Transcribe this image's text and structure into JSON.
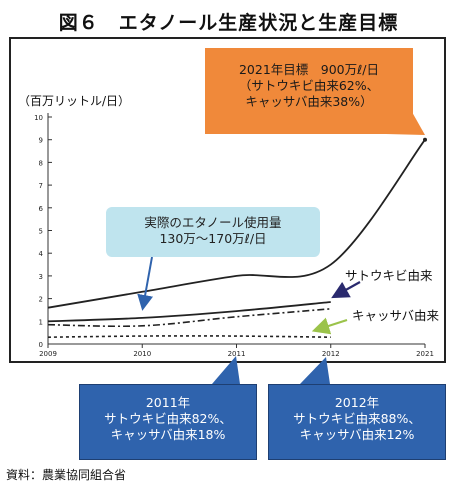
{
  "title": "図６　エタノール生産状況と生産目標",
  "source": "資料：農業協同組合省",
  "colors": {
    "target_box": "#f0893a",
    "actual_box": "#bfe4ee",
    "year_box": "#2f63ad",
    "navy_arrow": "#2a2a6e",
    "green_arrow": "#9bc34a",
    "blue_arrow": "#2f63ad"
  },
  "callouts": {
    "target": {
      "line1": "2021年目標　900万ℓ/日",
      "line2": "（サトウキビ由来62%、",
      "line3": "キャッサバ由来38%）"
    },
    "actual": {
      "line1": "実際のエタノール使用量",
      "line2": "130万～170万ℓ/日"
    },
    "y2011": {
      "line1": "2011年",
      "line2": "サトウキビ由来82%、",
      "line3": "キャッサバ由来18%"
    },
    "y2012": {
      "line1": "2012年",
      "line2": "サトウキビ由来88%、",
      "line3": "キャッサバ由来12%"
    }
  },
  "chart_data": {
    "type": "line",
    "ylabel": "（百万リットル/日）",
    "ylim": [
      0,
      10
    ],
    "yticks": [
      "0",
      "1",
      "2",
      "3",
      "4",
      "5",
      "6",
      "7",
      "8",
      "9",
      "10"
    ],
    "x": [
      "2009",
      "2010",
      "2011",
      "2012",
      "2021"
    ],
    "grid": false,
    "series": [
      {
        "name": "",
        "style": "solid-thick",
        "values": [
          1.6,
          2.3,
          3.0,
          3.5,
          9.0
        ]
      },
      {
        "name": "サトウキビ由来",
        "style": "solid",
        "values": [
          1.0,
          1.15,
          1.45,
          1.85,
          null
        ]
      },
      {
        "name": "",
        "style": "dashdot",
        "values": [
          0.85,
          0.8,
          1.2,
          1.55,
          null
        ]
      },
      {
        "name": "キャッサバ由来",
        "style": "dotted",
        "values": [
          0.3,
          0.35,
          0.35,
          0.3,
          null
        ]
      }
    ]
  }
}
